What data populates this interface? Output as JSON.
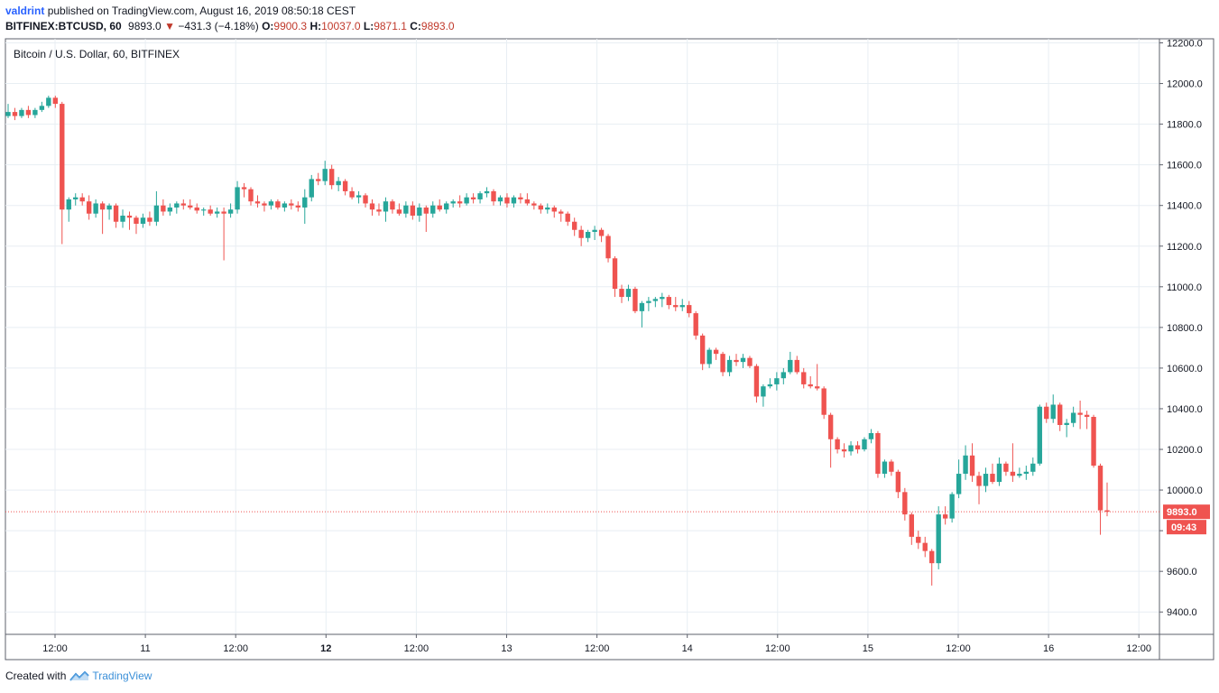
{
  "header": {
    "author": "valdrint",
    "published_text": "published on TradingView.com, August 16, 2019 08:50:18 CEST",
    "symbol": "BITFINEX:BTCUSD, 60",
    "last": "9893.0",
    "arrow": "▼",
    "change": "−431.3 (−4.18%)",
    "o_label": "O:",
    "o_value": "9900.3",
    "h_label": "H:",
    "h_value": "10037.0",
    "l_label": "L:",
    "l_value": "9871.1",
    "c_label": "C:",
    "c_value": "9893.0"
  },
  "footer": {
    "created_with": "Created with",
    "brand": "TradingView"
  },
  "colors": {
    "up": "#26a69a",
    "down": "#ef5350",
    "grid": "#e8eef3",
    "axis_text": "#131722",
    "price_line": "#ef5350"
  },
  "chart_data": {
    "type": "candlestick",
    "title": "Bitcoin / U.S. Dollar, 60, BITFINEX",
    "ylim": [
      9290,
      12220
    ],
    "y_ticks": [
      "12200.0",
      "12000.0",
      "11800.0",
      "11600.0",
      "11400.0",
      "11200.0",
      "11000.0",
      "10800.0",
      "10600.0",
      "10400.0",
      "10200.0",
      "10000.0",
      "9800.0",
      "9600.0",
      "9400.0"
    ],
    "x_ticks": [
      "12:00",
      "11",
      "12:00",
      "12",
      "12:00",
      "13",
      "12:00",
      "14",
      "12:00",
      "15",
      "12:00",
      "16",
      "12:00"
    ],
    "x_ticks_bold": [
      false,
      false,
      false,
      true,
      false,
      false,
      false,
      false,
      false,
      false,
      false,
      false,
      false
    ],
    "current_price": "9893.0",
    "countdown": "09:43",
    "grid": true,
    "candles": [
      {
        "o": 11840,
        "h": 11900,
        "l": 11830,
        "c": 11860
      },
      {
        "o": 11860,
        "h": 11880,
        "l": 11820,
        "c": 11840
      },
      {
        "o": 11840,
        "h": 11880,
        "l": 11830,
        "c": 11870
      },
      {
        "o": 11870,
        "h": 11890,
        "l": 11830,
        "c": 11845
      },
      {
        "o": 11845,
        "h": 11880,
        "l": 11830,
        "c": 11870
      },
      {
        "o": 11870,
        "h": 11910,
        "l": 11860,
        "c": 11890
      },
      {
        "o": 11890,
        "h": 11940,
        "l": 11880,
        "c": 11930
      },
      {
        "o": 11930,
        "h": 11940,
        "l": 11880,
        "c": 11900
      },
      {
        "o": 11900,
        "h": 11910,
        "l": 11210,
        "c": 11380
      },
      {
        "o": 11380,
        "h": 11440,
        "l": 11320,
        "c": 11430
      },
      {
        "o": 11430,
        "h": 11460,
        "l": 11400,
        "c": 11440
      },
      {
        "o": 11440,
        "h": 11460,
        "l": 11400,
        "c": 11420
      },
      {
        "o": 11420,
        "h": 11450,
        "l": 11330,
        "c": 11360
      },
      {
        "o": 11360,
        "h": 11430,
        "l": 11340,
        "c": 11410
      },
      {
        "o": 11410,
        "h": 11420,
        "l": 11260,
        "c": 11380
      },
      {
        "o": 11380,
        "h": 11410,
        "l": 11330,
        "c": 11400
      },
      {
        "o": 11400,
        "h": 11410,
        "l": 11290,
        "c": 11320
      },
      {
        "o": 11320,
        "h": 11380,
        "l": 11290,
        "c": 11350
      },
      {
        "o": 11350,
        "h": 11370,
        "l": 11280,
        "c": 11340
      },
      {
        "o": 11340,
        "h": 11350,
        "l": 11260,
        "c": 11310
      },
      {
        "o": 11310,
        "h": 11360,
        "l": 11290,
        "c": 11340
      },
      {
        "o": 11340,
        "h": 11370,
        "l": 11300,
        "c": 11320
      },
      {
        "o": 11320,
        "h": 11470,
        "l": 11300,
        "c": 11400
      },
      {
        "o": 11400,
        "h": 11430,
        "l": 11350,
        "c": 11370
      },
      {
        "o": 11370,
        "h": 11410,
        "l": 11350,
        "c": 11390
      },
      {
        "o": 11390,
        "h": 11420,
        "l": 11360,
        "c": 11410
      },
      {
        "o": 11410,
        "h": 11430,
        "l": 11380,
        "c": 11400
      },
      {
        "o": 11400,
        "h": 11430,
        "l": 11380,
        "c": 11390
      },
      {
        "o": 11390,
        "h": 11410,
        "l": 11360,
        "c": 11375
      },
      {
        "o": 11375,
        "h": 11390,
        "l": 11350,
        "c": 11380
      },
      {
        "o": 11380,
        "h": 11400,
        "l": 11350,
        "c": 11360
      },
      {
        "o": 11360,
        "h": 11390,
        "l": 11340,
        "c": 11370
      },
      {
        "o": 11370,
        "h": 11390,
        "l": 11130,
        "c": 11360
      },
      {
        "o": 11360,
        "h": 11410,
        "l": 11340,
        "c": 11380
      },
      {
        "o": 11380,
        "h": 11520,
        "l": 11360,
        "c": 11490
      },
      {
        "o": 11490,
        "h": 11510,
        "l": 11440,
        "c": 11480
      },
      {
        "o": 11480,
        "h": 11490,
        "l": 11400,
        "c": 11420
      },
      {
        "o": 11420,
        "h": 11450,
        "l": 11390,
        "c": 11410
      },
      {
        "o": 11410,
        "h": 11420,
        "l": 11370,
        "c": 11400
      },
      {
        "o": 11400,
        "h": 11430,
        "l": 11380,
        "c": 11420
      },
      {
        "o": 11420,
        "h": 11430,
        "l": 11380,
        "c": 11390
      },
      {
        "o": 11390,
        "h": 11420,
        "l": 11370,
        "c": 11410
      },
      {
        "o": 11410,
        "h": 11430,
        "l": 11380,
        "c": 11400
      },
      {
        "o": 11400,
        "h": 11420,
        "l": 11370,
        "c": 11390
      },
      {
        "o": 11390,
        "h": 11480,
        "l": 11310,
        "c": 11440
      },
      {
        "o": 11440,
        "h": 11550,
        "l": 11420,
        "c": 11530
      },
      {
        "o": 11530,
        "h": 11560,
        "l": 11500,
        "c": 11520
      },
      {
        "o": 11520,
        "h": 11620,
        "l": 11500,
        "c": 11580
      },
      {
        "o": 11580,
        "h": 11600,
        "l": 11480,
        "c": 11500
      },
      {
        "o": 11500,
        "h": 11540,
        "l": 11470,
        "c": 11520
      },
      {
        "o": 11520,
        "h": 11530,
        "l": 11450,
        "c": 11470
      },
      {
        "o": 11470,
        "h": 11490,
        "l": 11430,
        "c": 11440
      },
      {
        "o": 11440,
        "h": 11470,
        "l": 11410,
        "c": 11450
      },
      {
        "o": 11450,
        "h": 11460,
        "l": 11390,
        "c": 11410
      },
      {
        "o": 11410,
        "h": 11430,
        "l": 11350,
        "c": 11380
      },
      {
        "o": 11380,
        "h": 11410,
        "l": 11350,
        "c": 11370
      },
      {
        "o": 11370,
        "h": 11440,
        "l": 11320,
        "c": 11420
      },
      {
        "o": 11420,
        "h": 11430,
        "l": 11360,
        "c": 11380
      },
      {
        "o": 11380,
        "h": 11410,
        "l": 11350,
        "c": 11360
      },
      {
        "o": 11360,
        "h": 11420,
        "l": 11340,
        "c": 11400
      },
      {
        "o": 11400,
        "h": 11420,
        "l": 11330,
        "c": 11350
      },
      {
        "o": 11350,
        "h": 11410,
        "l": 11320,
        "c": 11390
      },
      {
        "o": 11390,
        "h": 11400,
        "l": 11270,
        "c": 11360
      },
      {
        "o": 11360,
        "h": 11420,
        "l": 11340,
        "c": 11400
      },
      {
        "o": 11400,
        "h": 11430,
        "l": 11370,
        "c": 11380
      },
      {
        "o": 11380,
        "h": 11420,
        "l": 11360,
        "c": 11410
      },
      {
        "o": 11410,
        "h": 11430,
        "l": 11390,
        "c": 11420
      },
      {
        "o": 11420,
        "h": 11450,
        "l": 11390,
        "c": 11410
      },
      {
        "o": 11410,
        "h": 11460,
        "l": 11400,
        "c": 11440
      },
      {
        "o": 11440,
        "h": 11460,
        "l": 11410,
        "c": 11430
      },
      {
        "o": 11430,
        "h": 11470,
        "l": 11410,
        "c": 11460
      },
      {
        "o": 11460,
        "h": 11490,
        "l": 11440,
        "c": 11470
      },
      {
        "o": 11470,
        "h": 11480,
        "l": 11400,
        "c": 11420
      },
      {
        "o": 11420,
        "h": 11450,
        "l": 11400,
        "c": 11440
      },
      {
        "o": 11440,
        "h": 11460,
        "l": 11390,
        "c": 11410
      },
      {
        "o": 11410,
        "h": 11450,
        "l": 11390,
        "c": 11440
      },
      {
        "o": 11440,
        "h": 11460,
        "l": 11410,
        "c": 11430
      },
      {
        "o": 11430,
        "h": 11460,
        "l": 11400,
        "c": 11410
      },
      {
        "o": 11410,
        "h": 11420,
        "l": 11380,
        "c": 11400
      },
      {
        "o": 11400,
        "h": 11410,
        "l": 11360,
        "c": 11380
      },
      {
        "o": 11380,
        "h": 11410,
        "l": 11360,
        "c": 11390
      },
      {
        "o": 11390,
        "h": 11400,
        "l": 11340,
        "c": 11370
      },
      {
        "o": 11370,
        "h": 11380,
        "l": 11320,
        "c": 11360
      },
      {
        "o": 11360,
        "h": 11370,
        "l": 11300,
        "c": 11320
      },
      {
        "o": 11320,
        "h": 11340,
        "l": 11250,
        "c": 11280
      },
      {
        "o": 11280,
        "h": 11300,
        "l": 11200,
        "c": 11240
      },
      {
        "o": 11240,
        "h": 11280,
        "l": 11220,
        "c": 11270
      },
      {
        "o": 11270,
        "h": 11300,
        "l": 11230,
        "c": 11280
      },
      {
        "o": 11280,
        "h": 11290,
        "l": 11220,
        "c": 11250
      },
      {
        "o": 11250,
        "h": 11260,
        "l": 11120,
        "c": 11140
      },
      {
        "o": 11140,
        "h": 11150,
        "l": 10950,
        "c": 10990
      },
      {
        "o": 10990,
        "h": 11010,
        "l": 10920,
        "c": 10950
      },
      {
        "o": 10950,
        "h": 11010,
        "l": 10930,
        "c": 10990
      },
      {
        "o": 10990,
        "h": 11000,
        "l": 10870,
        "c": 10880
      },
      {
        "o": 10880,
        "h": 10930,
        "l": 10800,
        "c": 10920
      },
      {
        "o": 10920,
        "h": 10950,
        "l": 10880,
        "c": 10930
      },
      {
        "o": 10930,
        "h": 10950,
        "l": 10900,
        "c": 10940
      },
      {
        "o": 10940,
        "h": 10970,
        "l": 10900,
        "c": 10950
      },
      {
        "o": 10950,
        "h": 10960,
        "l": 10890,
        "c": 10910
      },
      {
        "o": 10910,
        "h": 10950,
        "l": 10880,
        "c": 10900
      },
      {
        "o": 10900,
        "h": 10940,
        "l": 10880,
        "c": 10910
      },
      {
        "o": 10910,
        "h": 10930,
        "l": 10850,
        "c": 10870
      },
      {
        "o": 10870,
        "h": 10880,
        "l": 10740,
        "c": 10760
      },
      {
        "o": 10760,
        "h": 10770,
        "l": 10590,
        "c": 10620
      },
      {
        "o": 10620,
        "h": 10700,
        "l": 10600,
        "c": 10690
      },
      {
        "o": 10690,
        "h": 10700,
        "l": 10640,
        "c": 10670
      },
      {
        "o": 10670,
        "h": 10680,
        "l": 10560,
        "c": 10580
      },
      {
        "o": 10580,
        "h": 10660,
        "l": 10560,
        "c": 10640
      },
      {
        "o": 10640,
        "h": 10670,
        "l": 10610,
        "c": 10630
      },
      {
        "o": 10630,
        "h": 10670,
        "l": 10600,
        "c": 10650
      },
      {
        "o": 10650,
        "h": 10660,
        "l": 10600,
        "c": 10610
      },
      {
        "o": 10610,
        "h": 10620,
        "l": 10430,
        "c": 10460
      },
      {
        "o": 10460,
        "h": 10520,
        "l": 10410,
        "c": 10510
      },
      {
        "o": 10510,
        "h": 10550,
        "l": 10500,
        "c": 10520
      },
      {
        "o": 10520,
        "h": 10580,
        "l": 10490,
        "c": 10550
      },
      {
        "o": 10550,
        "h": 10600,
        "l": 10520,
        "c": 10580
      },
      {
        "o": 10580,
        "h": 10680,
        "l": 10570,
        "c": 10640
      },
      {
        "o": 10640,
        "h": 10660,
        "l": 10570,
        "c": 10580
      },
      {
        "o": 10580,
        "h": 10600,
        "l": 10500,
        "c": 10520
      },
      {
        "o": 10520,
        "h": 10560,
        "l": 10500,
        "c": 10510
      },
      {
        "o": 10510,
        "h": 10620,
        "l": 10490,
        "c": 10500
      },
      {
        "o": 10500,
        "h": 10510,
        "l": 10350,
        "c": 10370
      },
      {
        "o": 10370,
        "h": 10380,
        "l": 10110,
        "c": 10250
      },
      {
        "o": 10250,
        "h": 10260,
        "l": 10180,
        "c": 10200
      },
      {
        "o": 10200,
        "h": 10230,
        "l": 10160,
        "c": 10190
      },
      {
        "o": 10190,
        "h": 10240,
        "l": 10170,
        "c": 10220
      },
      {
        "o": 10220,
        "h": 10240,
        "l": 10180,
        "c": 10200
      },
      {
        "o": 10200,
        "h": 10260,
        "l": 10190,
        "c": 10250
      },
      {
        "o": 10250,
        "h": 10300,
        "l": 10230,
        "c": 10280
      },
      {
        "o": 10280,
        "h": 10290,
        "l": 10060,
        "c": 10080
      },
      {
        "o": 10080,
        "h": 10150,
        "l": 10060,
        "c": 10140
      },
      {
        "o": 10140,
        "h": 10150,
        "l": 10070,
        "c": 10090
      },
      {
        "o": 10090,
        "h": 10100,
        "l": 9960,
        "c": 9990
      },
      {
        "o": 9990,
        "h": 10010,
        "l": 9850,
        "c": 9880
      },
      {
        "o": 9880,
        "h": 9890,
        "l": 9730,
        "c": 9770
      },
      {
        "o": 9770,
        "h": 9800,
        "l": 9710,
        "c": 9740
      },
      {
        "o": 9740,
        "h": 9770,
        "l": 9670,
        "c": 9700
      },
      {
        "o": 9700,
        "h": 9710,
        "l": 9530,
        "c": 9640
      },
      {
        "o": 9640,
        "h": 9920,
        "l": 9610,
        "c": 9880
      },
      {
        "o": 9880,
        "h": 9920,
        "l": 9830,
        "c": 9860
      },
      {
        "o": 9860,
        "h": 9990,
        "l": 9840,
        "c": 9980
      },
      {
        "o": 9980,
        "h": 10150,
        "l": 9960,
        "c": 10080
      },
      {
        "o": 10080,
        "h": 10220,
        "l": 10050,
        "c": 10170
      },
      {
        "o": 10170,
        "h": 10230,
        "l": 10040,
        "c": 10070
      },
      {
        "o": 10070,
        "h": 10090,
        "l": 9930,
        "c": 10020
      },
      {
        "o": 10020,
        "h": 10110,
        "l": 9990,
        "c": 10080
      },
      {
        "o": 10080,
        "h": 10130,
        "l": 10030,
        "c": 10040
      },
      {
        "o": 10040,
        "h": 10160,
        "l": 10020,
        "c": 10130
      },
      {
        "o": 10130,
        "h": 10140,
        "l": 10070,
        "c": 10090
      },
      {
        "o": 10090,
        "h": 10230,
        "l": 10040,
        "c": 10070
      },
      {
        "o": 10070,
        "h": 10110,
        "l": 10060,
        "c": 10080
      },
      {
        "o": 10080,
        "h": 10120,
        "l": 10050,
        "c": 10090
      },
      {
        "o": 10090,
        "h": 10160,
        "l": 10070,
        "c": 10130
      },
      {
        "o": 10130,
        "h": 10420,
        "l": 10120,
        "c": 10410
      },
      {
        "o": 10410,
        "h": 10430,
        "l": 10330,
        "c": 10350
      },
      {
        "o": 10350,
        "h": 10470,
        "l": 10330,
        "c": 10420
      },
      {
        "o": 10420,
        "h": 10430,
        "l": 10290,
        "c": 10320
      },
      {
        "o": 10320,
        "h": 10350,
        "l": 10260,
        "c": 10330
      },
      {
        "o": 10330,
        "h": 10410,
        "l": 10310,
        "c": 10380
      },
      {
        "o": 10380,
        "h": 10440,
        "l": 10300,
        "c": 10370
      },
      {
        "o": 10370,
        "h": 10390,
        "l": 10300,
        "c": 10360
      },
      {
        "o": 10360,
        "h": 10370,
        "l": 10110,
        "c": 10120
      },
      {
        "o": 10120,
        "h": 10130,
        "l": 9780,
        "c": 9900
      },
      {
        "o": 9900.3,
        "h": 10037,
        "l": 9871.1,
        "c": 9893
      }
    ]
  }
}
